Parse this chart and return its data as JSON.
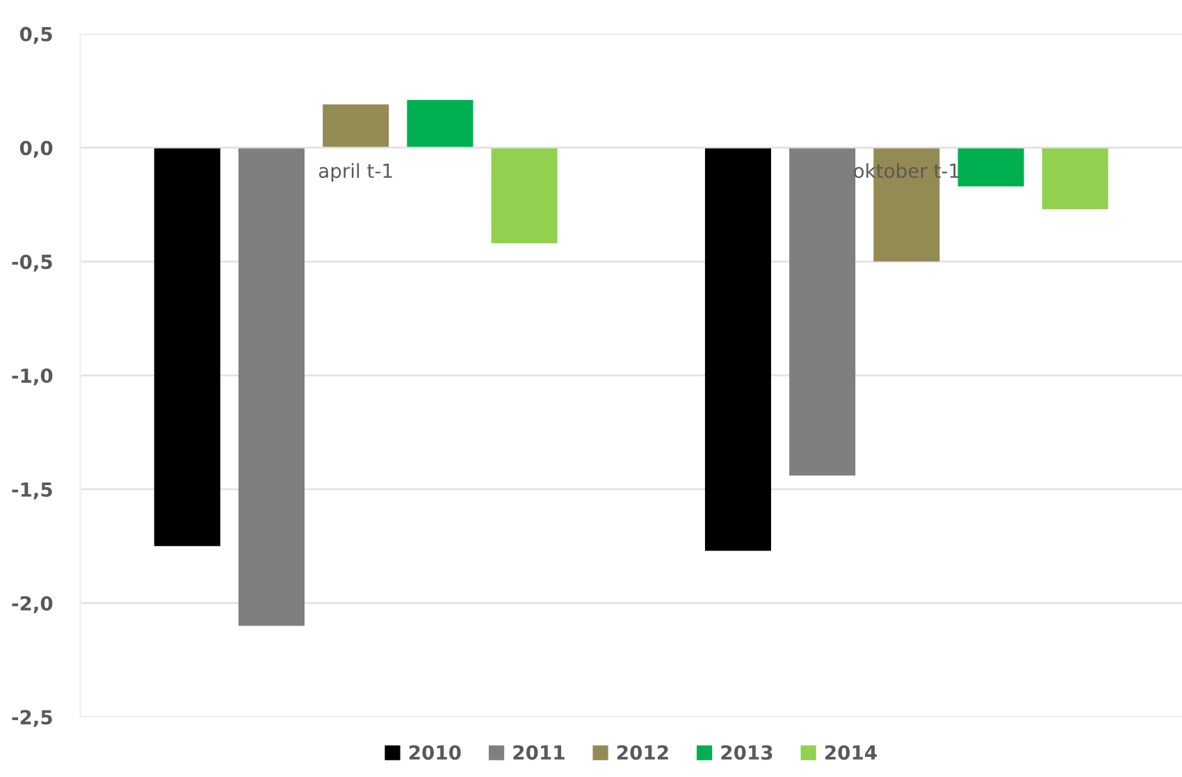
{
  "chart_data": {
    "type": "bar",
    "categories": [
      "april t-1",
      "oktober t-1"
    ],
    "series": [
      {
        "name": "2010",
        "color": "#000000",
        "values": [
          -1.75,
          -1.77
        ]
      },
      {
        "name": "2011",
        "color": "#7f7f7f",
        "values": [
          -2.1,
          -1.44
        ]
      },
      {
        "name": "2012",
        "color": "#948a54",
        "values": [
          0.19,
          -0.5
        ]
      },
      {
        "name": "2013",
        "color": "#00b050",
        "values": [
          0.21,
          -0.17
        ]
      },
      {
        "name": "2014",
        "color": "#92d050",
        "values": [
          -0.42,
          -0.27
        ]
      }
    ],
    "ylim": [
      -2.5,
      0.5
    ],
    "yticks": [
      {
        "value": -2.5,
        "label": "-2,5"
      },
      {
        "value": -2.0,
        "label": "-2,0"
      },
      {
        "value": -1.5,
        "label": "-1,5"
      },
      {
        "value": -1.0,
        "label": "-1,0"
      },
      {
        "value": -0.5,
        "label": "-0,5"
      },
      {
        "value": 0.0,
        "label": "0,0"
      },
      {
        "value": 0.5,
        "label": "0,5"
      }
    ],
    "grid": "y",
    "legend": "bottom"
  }
}
